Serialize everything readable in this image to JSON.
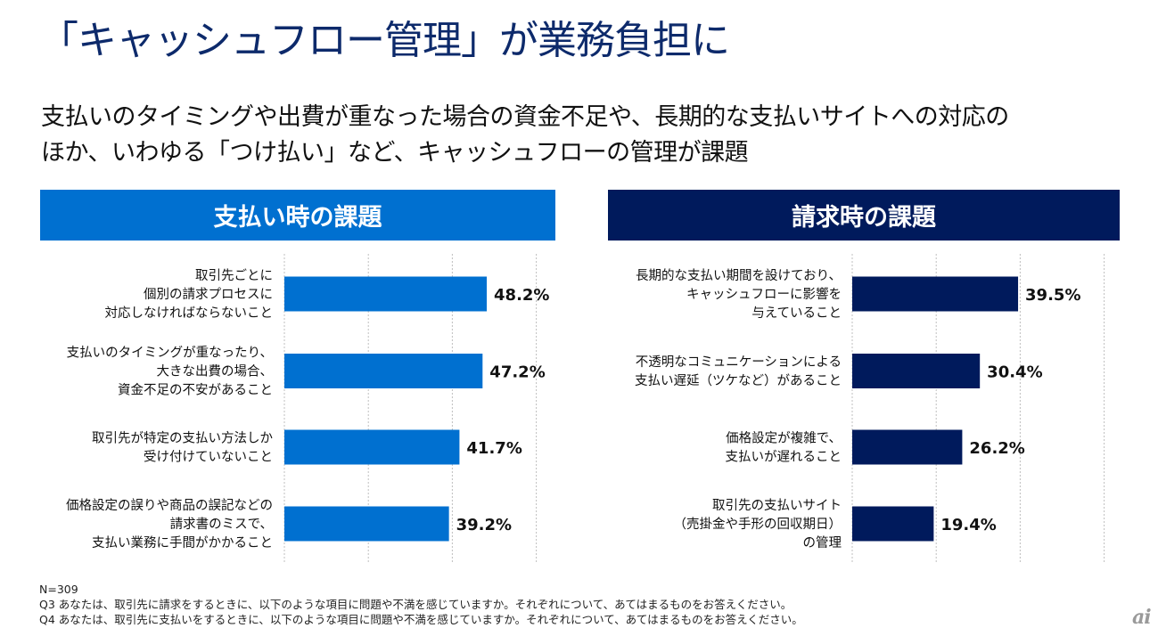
{
  "title": "「キャッシュフロー管理」が業務負担に",
  "subtitle": [
    "支払いのタイミングや出費が重なった場合の資金不足や、長期的な支払いサイトへの対応の",
    "ほか、いわゆる「つけ払い」など、キャッシュフローの管理が課題"
  ],
  "colors": {
    "left_bar": "#0070d0",
    "right_bar": "#001a5c",
    "title": "#0d2a6b",
    "gridline": "#bfbfbf"
  },
  "chart_data": [
    {
      "type": "bar",
      "orientation": "horizontal",
      "title": "支払い時の課題",
      "categories": [
        [
          "取引先ごとに",
          "個別の請求プロセスに",
          "対応しなければならないこと"
        ],
        [
          "支払いのタイミングが重なったり、",
          "大きな出費の場合、",
          "資金不足の不安があること"
        ],
        [
          "取引先が特定の支払い方法しか",
          "受け付けていないこと"
        ],
        [
          "価格設定の誤りや商品の誤記などの",
          "請求書のミスで、",
          "支払い業務に手間がかかること"
        ]
      ],
      "values": [
        48.2,
        47.2,
        41.7,
        39.2
      ],
      "value_labels": [
        "48.2%",
        "47.2%",
        "41.7%",
        "39.2%"
      ],
      "xlim": [
        0,
        60
      ],
      "grid_step": 20,
      "grid": true,
      "xlabel": "",
      "ylabel": ""
    },
    {
      "type": "bar",
      "orientation": "horizontal",
      "title": "請求時の課題",
      "categories": [
        [
          "長期的な支払い期間を設けており、",
          "キャッシュフローに影響を",
          "与えていること"
        ],
        [
          "不透明なコミュニケーションによる",
          "支払い遅延（ツケなど）があること"
        ],
        [
          "価格設定が複雑で、",
          "支払いが遅れること"
        ],
        [
          "取引先の支払いサイト",
          "（売掛金や手形の回収期日）",
          "の管理"
        ]
      ],
      "values": [
        39.5,
        30.4,
        26.2,
        19.4
      ],
      "value_labels": [
        "39.5%",
        "30.4%",
        "26.2%",
        "19.4%"
      ],
      "xlim": [
        0,
        60
      ],
      "grid_step": 20,
      "grid": true,
      "xlabel": "",
      "ylabel": ""
    }
  ],
  "footer": {
    "n": "N=309",
    "q3": "Q3 あなたは、取引先に請求をするときに、以下のような項目に問題や不満を感じていますか。それぞれについて、あてはまるものをお答えください。",
    "q4": "Q4 あなたは、取引先に支払いをするときに、以下のような項目に問題や不満を感じていますか。それぞれについて、あてはまるものをお答えください。"
  },
  "logo": "ai"
}
